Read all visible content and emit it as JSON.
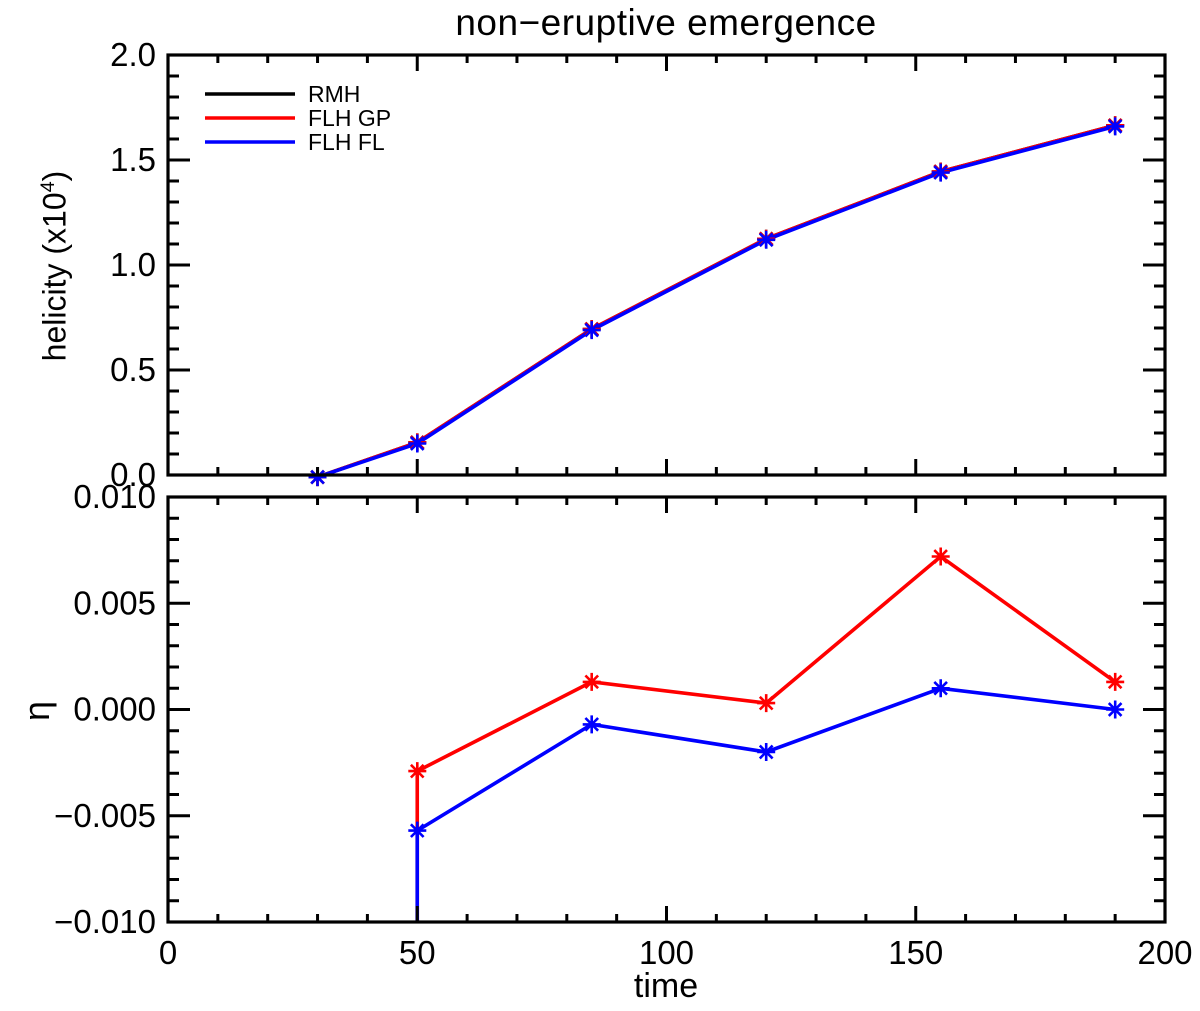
{
  "figure": {
    "title": "non−eruptive emergence",
    "background": "#ffffff",
    "axis_color": "#000000"
  },
  "chart_data": [
    {
      "type": "line",
      "panel": "top",
      "title": "non−eruptive emergence",
      "xlabel": "",
      "ylabel": "helicity (x10⁴)",
      "ylabel_parts": {
        "prefix": "helicity (x10",
        "exponent": "4",
        "suffix": ")"
      },
      "xlim": [
        0,
        200
      ],
      "ylim": [
        0.0,
        2.0
      ],
      "xticks": [
        0,
        50,
        100,
        150,
        200
      ],
      "xtick_labels": [],
      "x_minor_step": 10,
      "yticks": [
        0.0,
        0.5,
        1.0,
        1.5,
        2.0
      ],
      "ytick_labels": [
        "0.0",
        "0.5",
        "1.0",
        "1.5",
        "2.0"
      ],
      "y_minor_step": 0.1,
      "grid": false,
      "legend_position": "top-left",
      "show_legend": true,
      "x": [
        30,
        50,
        85,
        120,
        155,
        190
      ],
      "series": [
        {
          "name": "RMH",
          "color": "#000000",
          "marker": "asterisk",
          "values": [
            -0.01,
            0.155,
            0.695,
            1.125,
            1.445,
            1.665
          ]
        },
        {
          "name": "FLH GP",
          "color": "#ff0000",
          "marker": "asterisk",
          "values": [
            -0.01,
            0.155,
            0.695,
            1.125,
            1.445,
            1.665
          ]
        },
        {
          "name": "FLH FL",
          "color": "#0000ff",
          "marker": "asterisk",
          "values": [
            -0.01,
            0.15,
            0.69,
            1.12,
            1.44,
            1.66
          ]
        }
      ]
    },
    {
      "type": "line",
      "panel": "bottom",
      "title": "",
      "xlabel": "time",
      "ylabel": "η",
      "xlim": [
        0,
        200
      ],
      "ylim": [
        -0.01,
        0.01
      ],
      "xticks": [
        0,
        50,
        100,
        150,
        200
      ],
      "xtick_labels": [
        "0",
        "50",
        "100",
        "150",
        "200"
      ],
      "x_minor_step": 10,
      "yticks": [
        0.01,
        0.005,
        0.0,
        -0.005,
        -0.01
      ],
      "ytick_labels": [
        "0.010",
        "0.005",
        "0.000",
        "−0.005",
        "−0.010"
      ],
      "y_minor_step": 0.001,
      "grid": false,
      "show_legend": false,
      "note": "lines drop off-scale (below −0.010) at x=50",
      "x": [
        50,
        85,
        120,
        155,
        190
      ],
      "series": [
        {
          "name": "FLH GP",
          "color": "#ff0000",
          "marker": "asterisk",
          "drop_to_bottom_at_first_point": true,
          "values": [
            -0.0029,
            0.0013,
            0.0003,
            0.0072,
            0.0013
          ]
        },
        {
          "name": "FLH FL",
          "color": "#0000ff",
          "marker": "asterisk",
          "drop_to_bottom_at_first_point": true,
          "values": [
            -0.0057,
            -0.0007,
            -0.002,
            0.001,
            0.0
          ]
        }
      ]
    }
  ]
}
